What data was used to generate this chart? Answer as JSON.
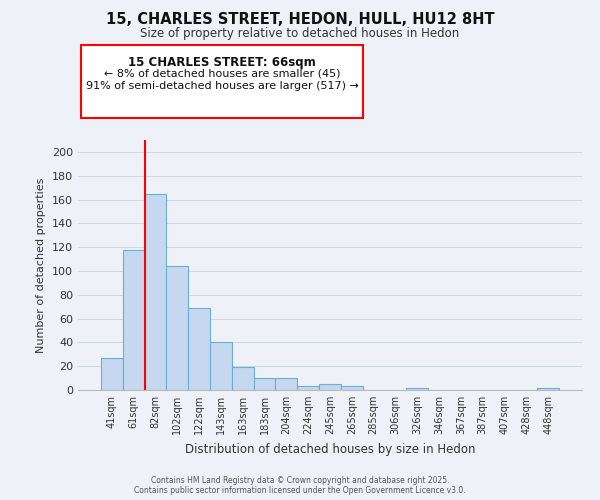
{
  "title": "15, CHARLES STREET, HEDON, HULL, HU12 8HT",
  "subtitle": "Size of property relative to detached houses in Hedon",
  "xlabel": "Distribution of detached houses by size in Hedon",
  "ylabel": "Number of detached properties",
  "bar_labels": [
    "41sqm",
    "61sqm",
    "82sqm",
    "102sqm",
    "122sqm",
    "143sqm",
    "163sqm",
    "183sqm",
    "204sqm",
    "224sqm",
    "245sqm",
    "265sqm",
    "285sqm",
    "306sqm",
    "326sqm",
    "346sqm",
    "367sqm",
    "387sqm",
    "407sqm",
    "428sqm",
    "448sqm"
  ],
  "bar_values": [
    27,
    118,
    165,
    104,
    69,
    40,
    19,
    10,
    10,
    3,
    5,
    3,
    0,
    0,
    2,
    0,
    0,
    0,
    0,
    0,
    2
  ],
  "bar_color": "#c5d8f0",
  "bar_edge_color": "#6aaed6",
  "ylim": [
    0,
    210
  ],
  "yticks": [
    0,
    20,
    40,
    60,
    80,
    100,
    120,
    140,
    160,
    180,
    200
  ],
  "annotation_title": "15 CHARLES STREET: 66sqm",
  "annotation_line1": "← 8% of detached houses are smaller (45)",
  "annotation_line2": "91% of semi-detached houses are larger (517) →",
  "footer1": "Contains HM Land Registry data © Crown copyright and database right 2025.",
  "footer2": "Contains public sector information licensed under the Open Government Licence v3.0.",
  "background_color": "#eef2f8",
  "plot_background": "#eef2f8",
  "grid_color": "#d0d8e8"
}
